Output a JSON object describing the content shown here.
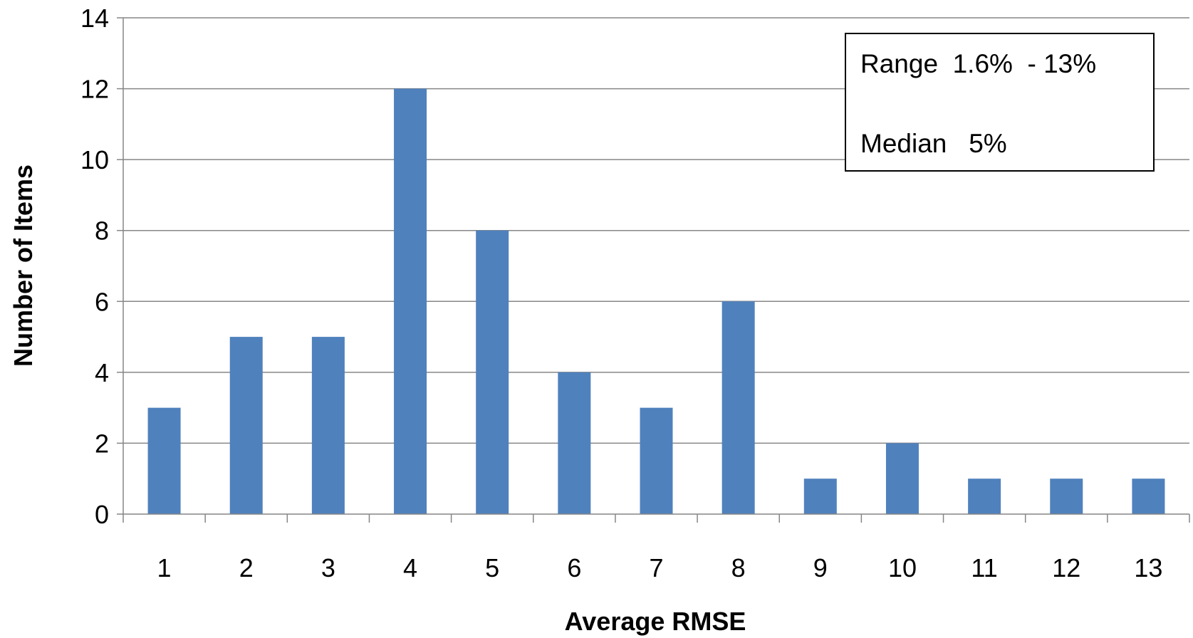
{
  "chart_data": {
    "type": "bar",
    "categories": [
      "1",
      "2",
      "3",
      "4",
      "5",
      "6",
      "7",
      "8",
      "9",
      "10",
      "11",
      "12",
      "13"
    ],
    "values": [
      3,
      5,
      5,
      12,
      8,
      4,
      3,
      6,
      1,
      2,
      1,
      1,
      1
    ],
    "title": "",
    "xlabel": "Average RMSE",
    "ylabel": "Number  of Items",
    "ylim": [
      0,
      14
    ],
    "yticks": [
      0,
      2,
      4,
      6,
      8,
      10,
      12,
      14
    ],
    "grid": true,
    "legend": "none",
    "bar_color": "#4f81bd",
    "annotation": {
      "range_text": "Range  1.6%  - 13%",
      "median_text": "Median   5%"
    }
  }
}
